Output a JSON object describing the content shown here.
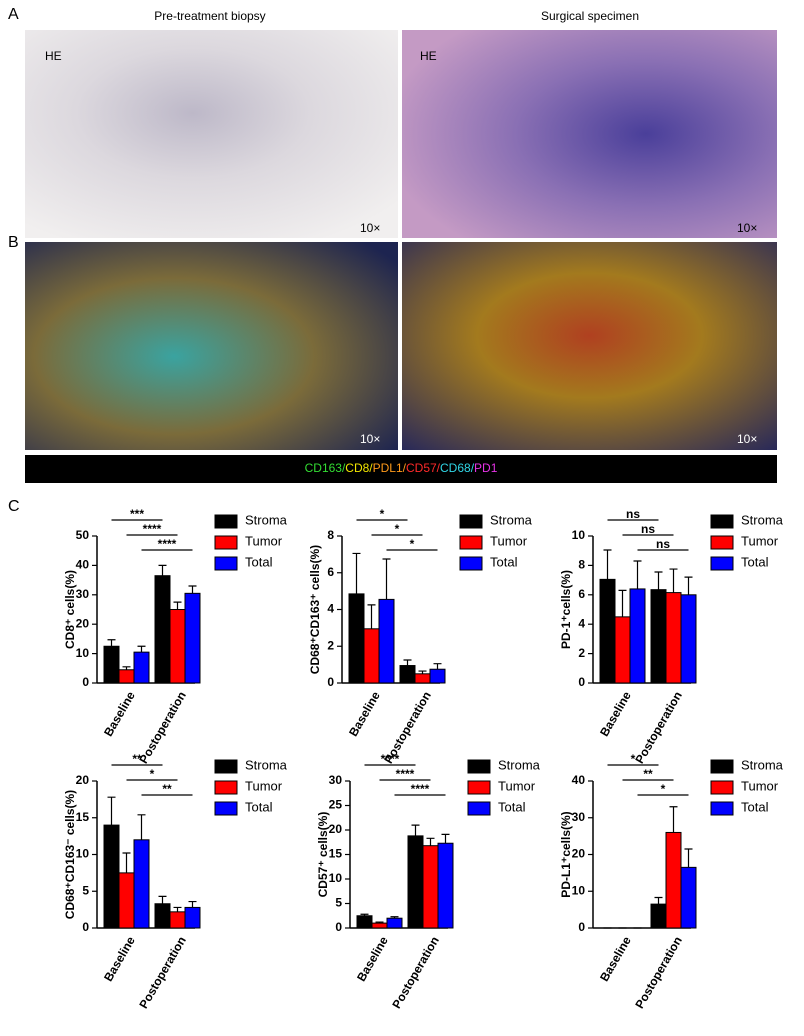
{
  "figure": {
    "panel_a": "A",
    "panel_b": "B",
    "panel_c": "C",
    "col_left": "Pre-treatment biopsy",
    "col_right": "Surgical specimen",
    "stain_left": "HE",
    "stain_right": "HE",
    "mag": [
      "10×",
      "10×",
      "10×",
      "10×"
    ],
    "marker_strip": [
      {
        "text": "CD163/",
        "color": "#33dd33"
      },
      {
        "text": "CD8/",
        "color": "#f2e600"
      },
      {
        "text": "PDL1/",
        "color": "#ff9a1a"
      },
      {
        "text": "CD57/",
        "color": "#ff2a2a"
      },
      {
        "text": "CD68/",
        "color": "#30d6e6"
      },
      {
        "text": "PD1",
        "color": "#e633e6"
      }
    ]
  },
  "chart_data": [
    {
      "type": "bar",
      "ylabel": "CD8⁺ cells(%)",
      "categories": [
        "Baseline",
        "Postoperation"
      ],
      "series": [
        {
          "name": "Stroma",
          "color": "#000000",
          "values": [
            12.5,
            36.5
          ],
          "errors": [
            2.2,
            3.5
          ]
        },
        {
          "name": "Tumor",
          "color": "#ff0000",
          "values": [
            4.5,
            25
          ],
          "errors": [
            1,
            2.5
          ]
        },
        {
          "name": "Total",
          "color": "#0000ff",
          "values": [
            10.5,
            30.5
          ],
          "errors": [
            2,
            2.5
          ]
        }
      ],
      "annotations": [
        "***",
        "****",
        "****"
      ],
      "ylim": [
        0,
        50
      ],
      "yticks": [
        0,
        10,
        20,
        30,
        40,
        50
      ]
    },
    {
      "type": "bar",
      "ylabel": "CD68⁺CD163⁺ cells(%)",
      "categories": [
        "Baseline",
        "Postoperation"
      ],
      "series": [
        {
          "name": "Stroma",
          "color": "#000000",
          "values": [
            4.85,
            0.95
          ],
          "errors": [
            2.2,
            0.3
          ]
        },
        {
          "name": "Tumor",
          "color": "#ff0000",
          "values": [
            2.95,
            0.5
          ],
          "errors": [
            1.3,
            0.15
          ]
        },
        {
          "name": "Total",
          "color": "#0000ff",
          "values": [
            4.55,
            0.75
          ],
          "errors": [
            2.2,
            0.3
          ]
        }
      ],
      "annotations": [
        "*",
        "*",
        "*"
      ],
      "ylim": [
        0,
        8
      ],
      "yticks": [
        0,
        2,
        4,
        6,
        8
      ]
    },
    {
      "type": "bar",
      "ylabel": "PD-1⁺cells(%)",
      "categories": [
        "Baseline",
        "Postoperation"
      ],
      "series": [
        {
          "name": "Stroma",
          "color": "#000000",
          "values": [
            7.05,
            6.35
          ],
          "errors": [
            2,
            1.2
          ]
        },
        {
          "name": "Tumor",
          "color": "#ff0000",
          "values": [
            4.5,
            6.15
          ],
          "errors": [
            1.8,
            1.6
          ]
        },
        {
          "name": "Total",
          "color": "#0000ff",
          "values": [
            6.4,
            6.0
          ],
          "errors": [
            1.9,
            1.2
          ]
        }
      ],
      "annotations": [
        "ns",
        "ns",
        "ns"
      ],
      "ylim": [
        0,
        10
      ],
      "yticks": [
        0,
        2,
        4,
        6,
        8,
        10
      ]
    },
    {
      "type": "bar",
      "ylabel": "CD68⁺CD163⁻ cells(%)",
      "categories": [
        "Baseline",
        "Postoperation"
      ],
      "series": [
        {
          "name": "Stroma",
          "color": "#000000",
          "values": [
            14,
            3.3
          ],
          "errors": [
            3.8,
            1
          ]
        },
        {
          "name": "Tumor",
          "color": "#ff0000",
          "values": [
            7.5,
            2.2
          ],
          "errors": [
            2.7,
            0.6
          ]
        },
        {
          "name": "Total",
          "color": "#0000ff",
          "values": [
            12,
            2.8
          ],
          "errors": [
            3.4,
            0.8
          ]
        }
      ],
      "annotations": [
        "**",
        "*",
        "**"
      ],
      "ylim": [
        0,
        20
      ],
      "yticks": [
        0,
        5,
        10,
        15,
        20
      ]
    },
    {
      "type": "bar",
      "ylabel": "CD57⁺ cells(%)",
      "categories": [
        "Baseline",
        "Postoperation"
      ],
      "series": [
        {
          "name": "Stroma",
          "color": "#000000",
          "values": [
            2.5,
            18.8
          ],
          "errors": [
            0.3,
            2.2
          ]
        },
        {
          "name": "Tumor",
          "color": "#ff0000",
          "values": [
            1,
            16.8
          ],
          "errors": [
            0.2,
            1.5
          ]
        },
        {
          "name": "Total",
          "color": "#0000ff",
          "values": [
            2,
            17.3
          ],
          "errors": [
            0.3,
            1.8
          ]
        }
      ],
      "annotations": [
        "****",
        "****",
        "****"
      ],
      "ylim": [
        0,
        30
      ],
      "yticks": [
        0,
        5,
        10,
        15,
        20,
        25,
        30
      ]
    },
    {
      "type": "bar",
      "ylabel": "PD-L1⁺cells(%)",
      "categories": [
        "Baseline",
        "Postoperation"
      ],
      "series": [
        {
          "name": "Stroma",
          "color": "#000000",
          "values": [
            0,
            6.5
          ],
          "errors": [
            0,
            1.8
          ]
        },
        {
          "name": "Tumor",
          "color": "#ff0000",
          "values": [
            0,
            26
          ],
          "errors": [
            0,
            7
          ]
        },
        {
          "name": "Total",
          "color": "#0000ff",
          "values": [
            0,
            16.5
          ],
          "errors": [
            0,
            5
          ]
        }
      ],
      "annotations": [
        "*",
        "**",
        "*"
      ],
      "ylim": [
        0,
        40
      ],
      "yticks": [
        0,
        10,
        20,
        30,
        40
      ]
    }
  ]
}
